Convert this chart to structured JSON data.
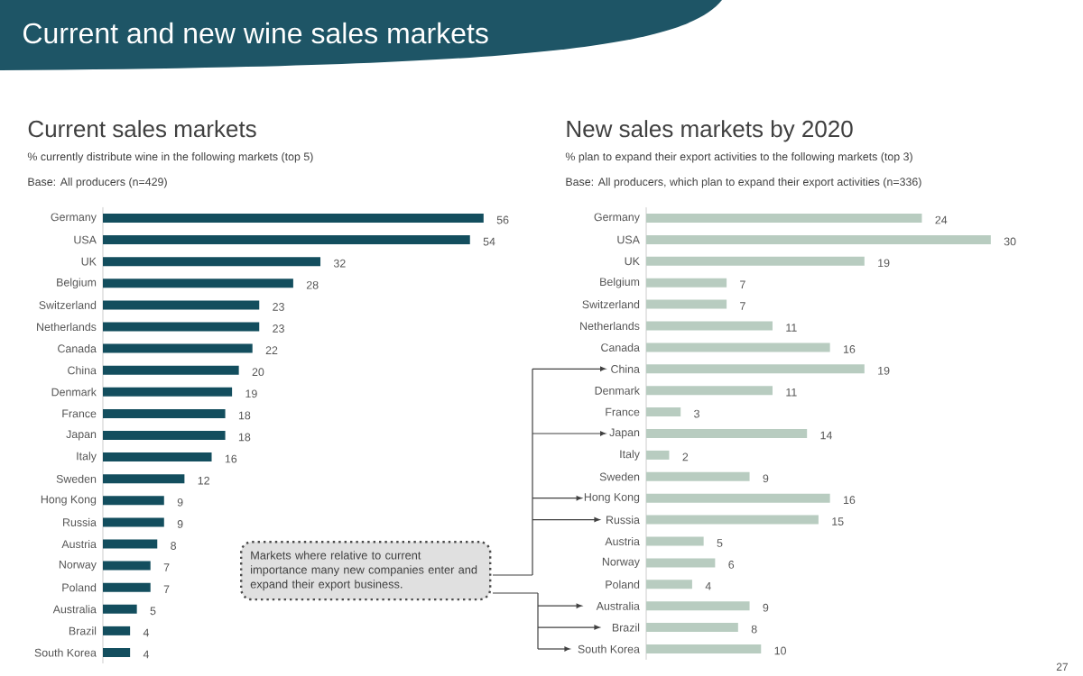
{
  "chart_data": [
    {
      "type": "bar",
      "orientation": "horizontal",
      "title": "Current sales markets",
      "subtitle": "% currently distribute wine in the following markets (top 5)",
      "annotations": [
        "Base: All producers (n=429)",
        "Current and new wine sales markets",
        "27"
      ],
      "categories": [
        "Germany",
        "USA",
        "UK",
        "Belgium",
        "Switzerland",
        "Netherlands",
        "Canada",
        "China",
        "Denmark",
        "France",
        "Japan",
        "Italy",
        "Sweden",
        "Hong Kong",
        "Russia",
        "Austria",
        "Norway",
        "Poland",
        "Australia",
        "Brazil",
        "South Korea"
      ],
      "values": [
        56,
        54,
        32,
        28,
        23,
        23,
        22,
        20,
        19,
        18,
        18,
        16,
        12,
        9,
        9,
        8,
        7,
        7,
        5,
        4,
        4
      ],
      "color": "#134e5e",
      "data_labels": true
    },
    {
      "type": "bar",
      "orientation": "horizontal",
      "title": "New sales markets by 2020",
      "subtitle": "% plan to expand their export activities to the following markets (top 3)",
      "annotations": [
        "Base: All producers, which plan to expand their export activities (n=336)",
        "Markets where relative to current importance many new companies enter and expand their export business."
      ],
      "categories": [
        "Germany",
        "USA",
        "UK",
        "Belgium",
        "Switzerland",
        "Netherlands",
        "Canada",
        "China",
        "Denmark",
        "France",
        "Japan",
        "Italy",
        "Sweden",
        "Hong Kong",
        "Russia",
        "Austria",
        "Norway",
        "Poland",
        "Australia",
        "Brazil",
        "South Korea"
      ],
      "values": [
        24,
        30,
        19,
        7,
        7,
        11,
        16,
        19,
        11,
        3,
        14,
        2,
        9,
        16,
        15,
        5,
        6,
        4,
        9,
        8,
        10
      ],
      "color": "#b8ccc0",
      "data_labels": true
    }
  ]
}
